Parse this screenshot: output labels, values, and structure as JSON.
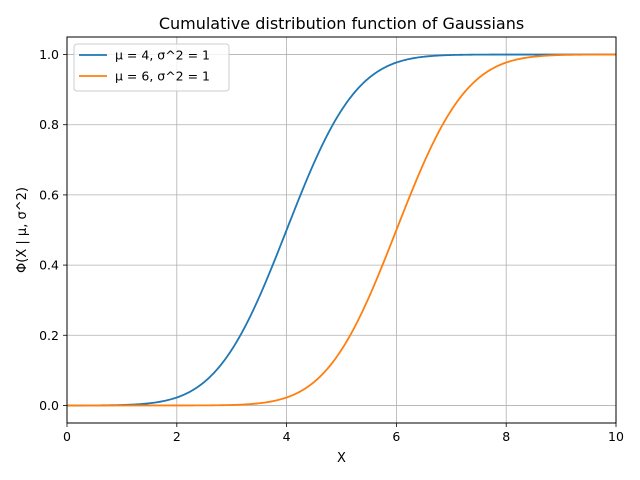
{
  "chart_data": {
    "type": "line",
    "title": "Cumulative distribution function of Gaussians",
    "xlabel": "X",
    "ylabel": "Φ(X | μ, σ^2)",
    "xlim": [
      0,
      10
    ],
    "ylim": [
      -0.05,
      1.05
    ],
    "xticks": [
      0,
      2,
      4,
      6,
      8,
      10
    ],
    "yticks": [
      0.0,
      0.2,
      0.4,
      0.6,
      0.8,
      1.0
    ],
    "xtick_labels": [
      "0",
      "2",
      "4",
      "6",
      "8",
      "10"
    ],
    "ytick_labels": [
      "0.0",
      "0.2",
      "0.4",
      "0.6",
      "0.8",
      "1.0"
    ],
    "grid": true,
    "legend_position": "top-left",
    "x": [
      0,
      0.5,
      1,
      1.5,
      2,
      2.5,
      3,
      3.25,
      3.5,
      3.75,
      4,
      4.25,
      4.5,
      4.75,
      5,
      5.25,
      5.5,
      6,
      6.5,
      7,
      7.5,
      8,
      8.5,
      9,
      9.5,
      10
    ],
    "series": [
      {
        "name": "μ = 4, σ^2 = 1",
        "color": "#1f77b4",
        "mu": 4,
        "sigma2": 1,
        "values": [
          0.0,
          0.0002,
          0.0013,
          0.0062,
          0.0228,
          0.0668,
          0.1587,
          0.2266,
          0.3085,
          0.4013,
          0.5,
          0.5987,
          0.6915,
          0.7734,
          0.8413,
          0.8944,
          0.9332,
          0.9772,
          0.9938,
          0.9987,
          0.9998,
          1.0,
          1.0,
          1.0,
          1.0,
          1.0
        ]
      },
      {
        "name": "μ = 6, σ^2 = 1",
        "color": "#ff7f0e",
        "mu": 6,
        "sigma2": 1,
        "values": [
          0.0,
          0.0,
          0.0,
          0.0,
          0.0,
          0.0002,
          0.0013,
          0.003,
          0.0062,
          0.0122,
          0.0228,
          0.0401,
          0.0668,
          0.1056,
          0.1587,
          0.2266,
          0.3085,
          0.5,
          0.6915,
          0.8413,
          0.9332,
          0.9772,
          0.9938,
          0.9987,
          0.9998,
          1.0
        ]
      }
    ]
  }
}
